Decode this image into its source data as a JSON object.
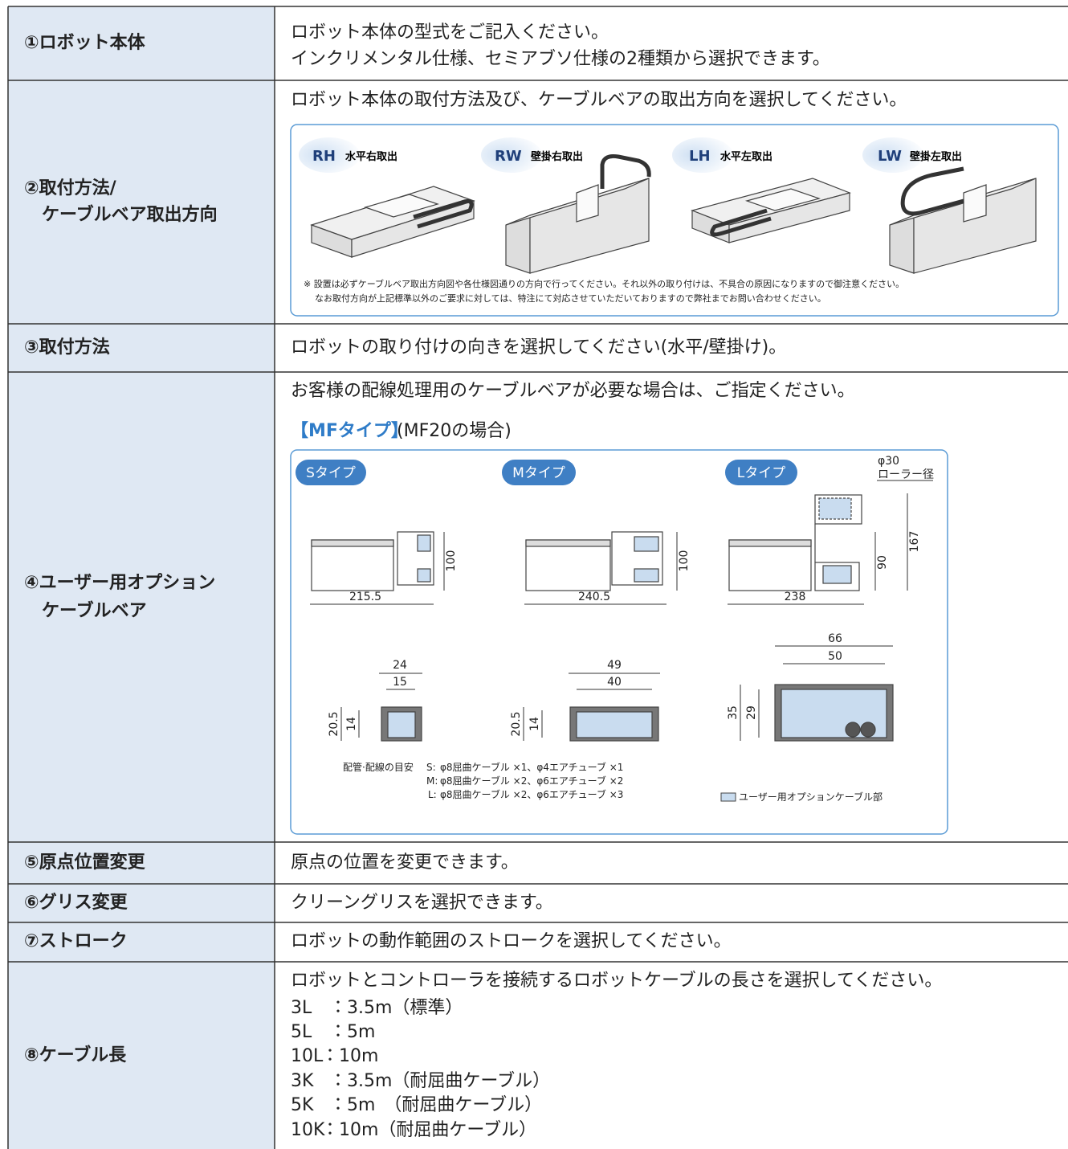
{
  "table": {
    "rows": [
      {
        "label": [
          "①ロボット本体"
        ],
        "lines": [
          "ロボット本体の型式をご記入ください。",
          "インクリメンタル仕様、セミアブソ仕様の2種類から選択できます。"
        ]
      },
      {
        "label": [
          "②取付方法/",
          "ケーブルベア取出方向"
        ],
        "lines": [
          "ロボット本体の取付方法及び、ケーブルベアの取出方向を選択してください。"
        ],
        "figure": {
          "items": [
            {
              "code": "RH",
              "text": "水平右取出"
            },
            {
              "code": "RW",
              "text": "壁掛右取出"
            },
            {
              "code": "LH",
              "text": "水平左取出"
            },
            {
              "code": "LW",
              "text": "壁掛左取出"
            }
          ],
          "notes": [
            "※ 設置は必ずケーブルベア取出方向図や各仕様図通りの方向で行ってください。それ以外の取り付けは、不具合の原因になりますので御注意ください。",
            "なお取付方向が上記標準以外のご要求に対しては、特注にて対応させていただいておりますので弊社までお問い合わせください。"
          ]
        }
      },
      {
        "label": [
          "③取付方法"
        ],
        "lines": [
          "ロボットの取り付けの向きを選択してください(水平/壁掛け)。"
        ]
      },
      {
        "label": [
          "④ユーザー用オプション",
          "ケーブルベア"
        ],
        "lines": [
          "お客様の配線処理用のケーブルベアが必要な場合は、ご指定ください。"
        ],
        "heading": "【MFタイプ】",
        "heading_note": "(MF20の場合)",
        "figure": {
          "types": [
            {
              "badge": "Sタイプ",
              "width": "215.5",
              "height": "100",
              "outer_width": "24",
              "inner_width": "15",
              "outer_height": "20.5",
              "inner_height": "14"
            },
            {
              "badge": "Mタイプ",
              "width": "240.5",
              "height": "100",
              "outer_width": "49",
              "inner_width": "40",
              "outer_height": "20.5",
              "inner_height": "14"
            },
            {
              "badge": "Lタイプ",
              "width": "238",
              "height": "167",
              "height2": "90",
              "roller": "φ30",
              "roller_label": "ローラー径",
              "outer_width": "66",
              "inner_width": "50",
              "outer_height": "35",
              "inner_height": "29"
            }
          ],
          "guide_title": "配管·配線の目安",
          "guide": [
            {
              "size": "S:",
              "text": "φ8屈曲ケーブル ×1、φ4エアチューブ ×1"
            },
            {
              "size": "M:",
              "text": "φ8屈曲ケーブル ×2、φ6エアチューブ ×2"
            },
            {
              "size": "L:",
              "text": "φ8屈曲ケーブル ×2、φ6エアチューブ ×3"
            }
          ],
          "legend": "ユーザー用オプションケーブル部"
        }
      },
      {
        "label": [
          "⑤原点位置変更"
        ],
        "lines": [
          "原点の位置を変更できます。"
        ]
      },
      {
        "label": [
          "⑥グリス変更"
        ],
        "lines": [
          "クリーングリスを選択できます。"
        ]
      },
      {
        "label": [
          "⑦ストローク"
        ],
        "lines": [
          "ロボットの動作範囲のストロークを選択してください。"
        ]
      },
      {
        "label": [
          "⑧ケーブル長"
        ],
        "lines": [
          "ロボットとコントローラを接続するロボットケーブルの長さを選択してください。"
        ],
        "options": [
          {
            "code": "3L",
            "text": "：3.5m（標準）"
          },
          {
            "code": "5L",
            "text": "：5m"
          },
          {
            "code": "10L",
            "text": "：10m"
          },
          {
            "code": "3K",
            "text": "：3.5m（耐屈曲ケーブル）"
          },
          {
            "code": "5K",
            "text": "：5m　（耐屈曲ケーブル）"
          },
          {
            "code": "10K",
            "text": "：10m（耐屈曲ケーブル）"
          }
        ]
      }
    ]
  }
}
